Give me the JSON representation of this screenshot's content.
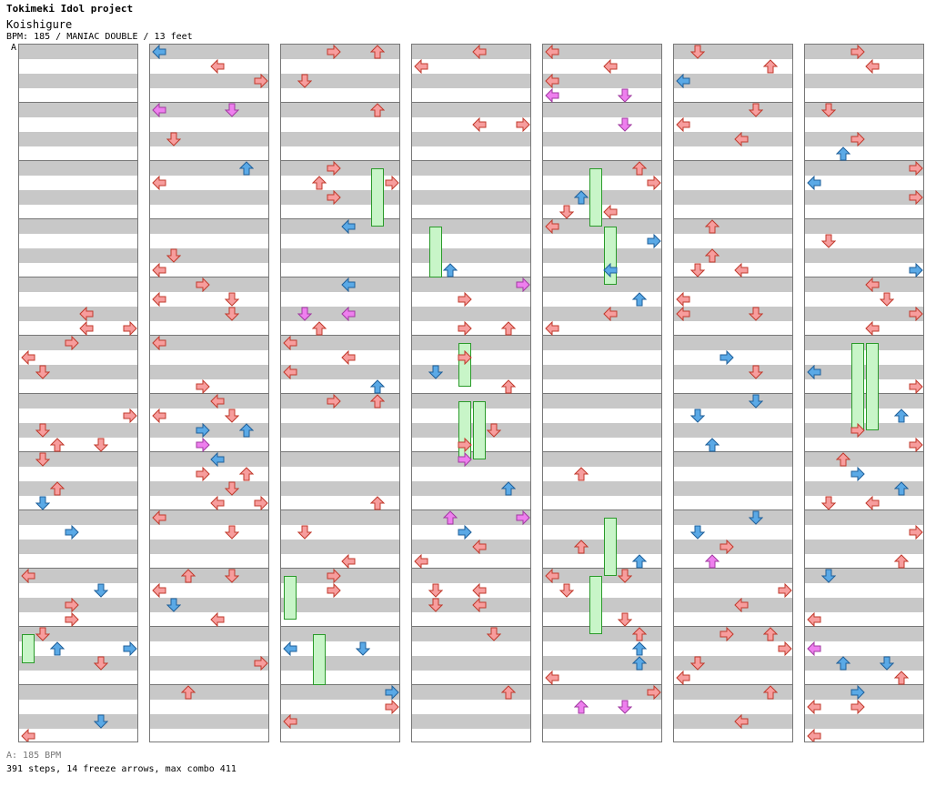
{
  "header": {
    "title": "Tokimeki Idol project",
    "subtitle": "Koishigure",
    "meta": "BPM: 185 / MANIAC DOUBLE / 13 feet",
    "marker": "A"
  },
  "footer": {
    "bpm_line": "A: 185 BPM",
    "stats_line": "391 steps, 14 freeze arrows, max combo 411"
  },
  "colors": {
    "quarter_arrow": "#f79d9d",
    "eighth_arrow": "#5aa9e6",
    "sixteenth_arrow": "#ee7fee",
    "freeze_body": "#c8f5c8",
    "freeze_border": "#2a9a2a",
    "stripe": "#c8c8c8",
    "bpm_line": "#5aa9e6"
  },
  "chart": {
    "columns": 7,
    "measures_per_column": 12,
    "lanes": [
      "P1-left",
      "P1-down",
      "P1-up",
      "P1-right",
      "P2-left",
      "P2-down",
      "P2-up",
      "P2-right"
    ],
    "icons": [
      "arrow-left-icon",
      "arrow-down-icon",
      "arrow-up-icon",
      "arrow-right-icon"
    ]
  }
}
